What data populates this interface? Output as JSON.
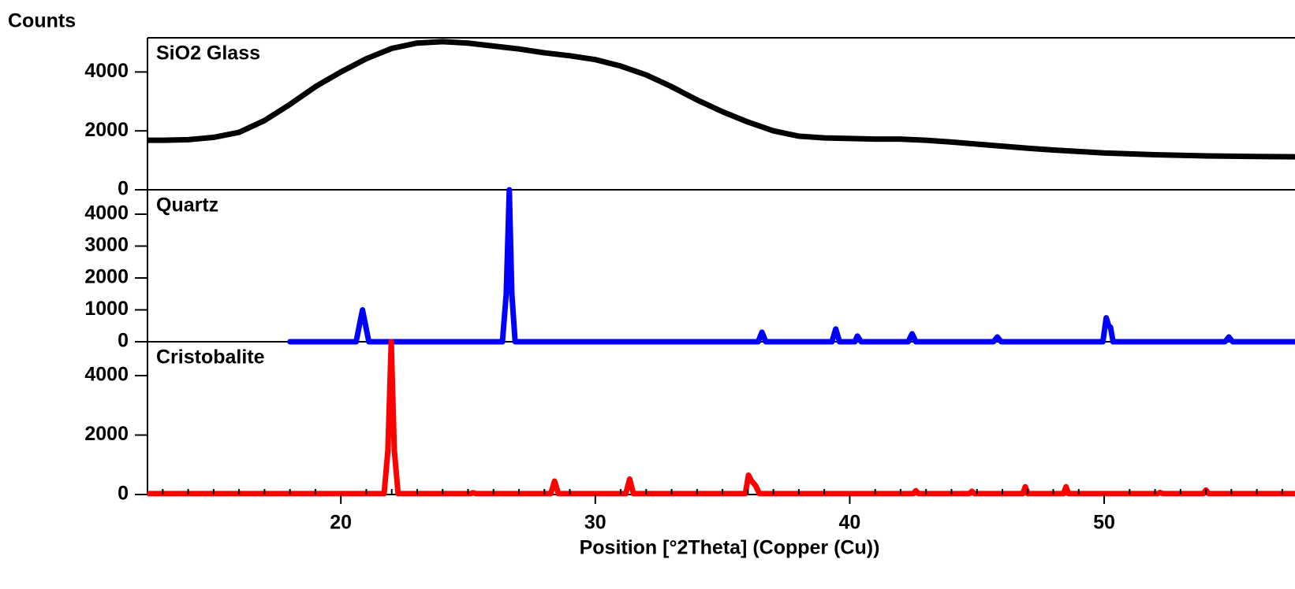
{
  "chart_data": [
    {
      "type": "line",
      "title": "SiO2 Glass",
      "ylabel": "Counts",
      "color": "#000000",
      "xlim": [
        12.4,
        57.5
      ],
      "ylim": [
        0,
        5160
      ],
      "yticks": [
        0,
        2000,
        4000
      ],
      "x": [
        12.4,
        13,
        14,
        15,
        16,
        17,
        18,
        19,
        20,
        21,
        22,
        23,
        24,
        25,
        26,
        27,
        28,
        29,
        30,
        31,
        32,
        33,
        34,
        35,
        36,
        37,
        38,
        39,
        40,
        41,
        42,
        43,
        44,
        45,
        46,
        47,
        48,
        49,
        50,
        51,
        52,
        53,
        54,
        55,
        56,
        57.5
      ],
      "values": [
        1680,
        1680,
        1700,
        1780,
        1950,
        2350,
        2900,
        3500,
        4000,
        4450,
        4800,
        4980,
        5030,
        4980,
        4880,
        4780,
        4650,
        4550,
        4420,
        4200,
        3900,
        3500,
        3050,
        2650,
        2300,
        2000,
        1820,
        1760,
        1740,
        1720,
        1720,
        1680,
        1620,
        1550,
        1480,
        1410,
        1350,
        1300,
        1250,
        1220,
        1190,
        1170,
        1150,
        1140,
        1130,
        1120
      ]
    },
    {
      "type": "line",
      "title": "Quartz",
      "color": "#0000ff",
      "xlim": [
        12.4,
        57.5
      ],
      "ylim": [
        0,
        4765
      ],
      "yticks": [
        0,
        1000,
        2000,
        3000,
        4000
      ],
      "x": [
        18,
        20.6,
        20.75,
        20.85,
        20.95,
        21.1,
        26.35,
        26.5,
        26.62,
        26.72,
        26.85,
        36.4,
        36.55,
        36.7,
        39.3,
        39.45,
        39.6,
        40.2,
        40.3,
        40.45,
        42.3,
        42.45,
        42.6,
        45.65,
        45.8,
        45.95,
        49.95,
        50.08,
        50.18,
        50.25,
        50.35,
        54.75,
        54.9,
        55.05,
        57.5
      ],
      "values": [
        0,
        0,
        600,
        1000,
        600,
        0,
        0,
        1500,
        4765,
        1500,
        0,
        0,
        300,
        0,
        0,
        400,
        0,
        0,
        180,
        0,
        0,
        250,
        0,
        0,
        150,
        0,
        0,
        750,
        500,
        450,
        0,
        0,
        150,
        0,
        0
      ]
    },
    {
      "type": "line",
      "title": "Cristobalite",
      "color": "#ff0000",
      "xlabel": "Position [°2Theta] (Copper (Cu))",
      "xlim": [
        12.4,
        57.5
      ],
      "ylim": [
        0,
        5140
      ],
      "yticks": [
        0,
        2000,
        4000
      ],
      "xticks": [
        20,
        30,
        40,
        50
      ],
      "xminorticks": [
        13,
        14,
        15,
        16,
        17,
        18,
        19,
        21,
        22,
        23,
        24,
        25,
        26,
        27,
        28,
        29,
        31,
        32,
        33,
        34,
        35,
        36,
        37,
        38,
        39,
        41,
        42,
        43,
        44,
        45,
        46,
        47,
        48,
        49,
        51,
        52,
        53,
        54,
        55,
        56,
        57
      ],
      "x": [
        12.4,
        21.7,
        21.85,
        21.98,
        22.1,
        22.25,
        25.1,
        25.2,
        25.3,
        28.25,
        28.4,
        28.55,
        31.2,
        31.35,
        31.5,
        35.9,
        36.02,
        36.15,
        36.3,
        36.45,
        42.5,
        42.6,
        42.7,
        44.7,
        44.8,
        44.9,
        46.8,
        46.9,
        47.0,
        48.4,
        48.5,
        48.6,
        52.1,
        52.2,
        52.3,
        53.9,
        54.0,
        54.1,
        57.5
      ],
      "values": [
        30,
        30,
        1500,
        5140,
        1500,
        30,
        30,
        60,
        30,
        30,
        450,
        30,
        30,
        520,
        30,
        30,
        650,
        450,
        300,
        30,
        30,
        130,
        30,
        30,
        110,
        30,
        30,
        260,
        30,
        30,
        260,
        30,
        30,
        70,
        30,
        30,
        150,
        30,
        30
      ]
    }
  ]
}
